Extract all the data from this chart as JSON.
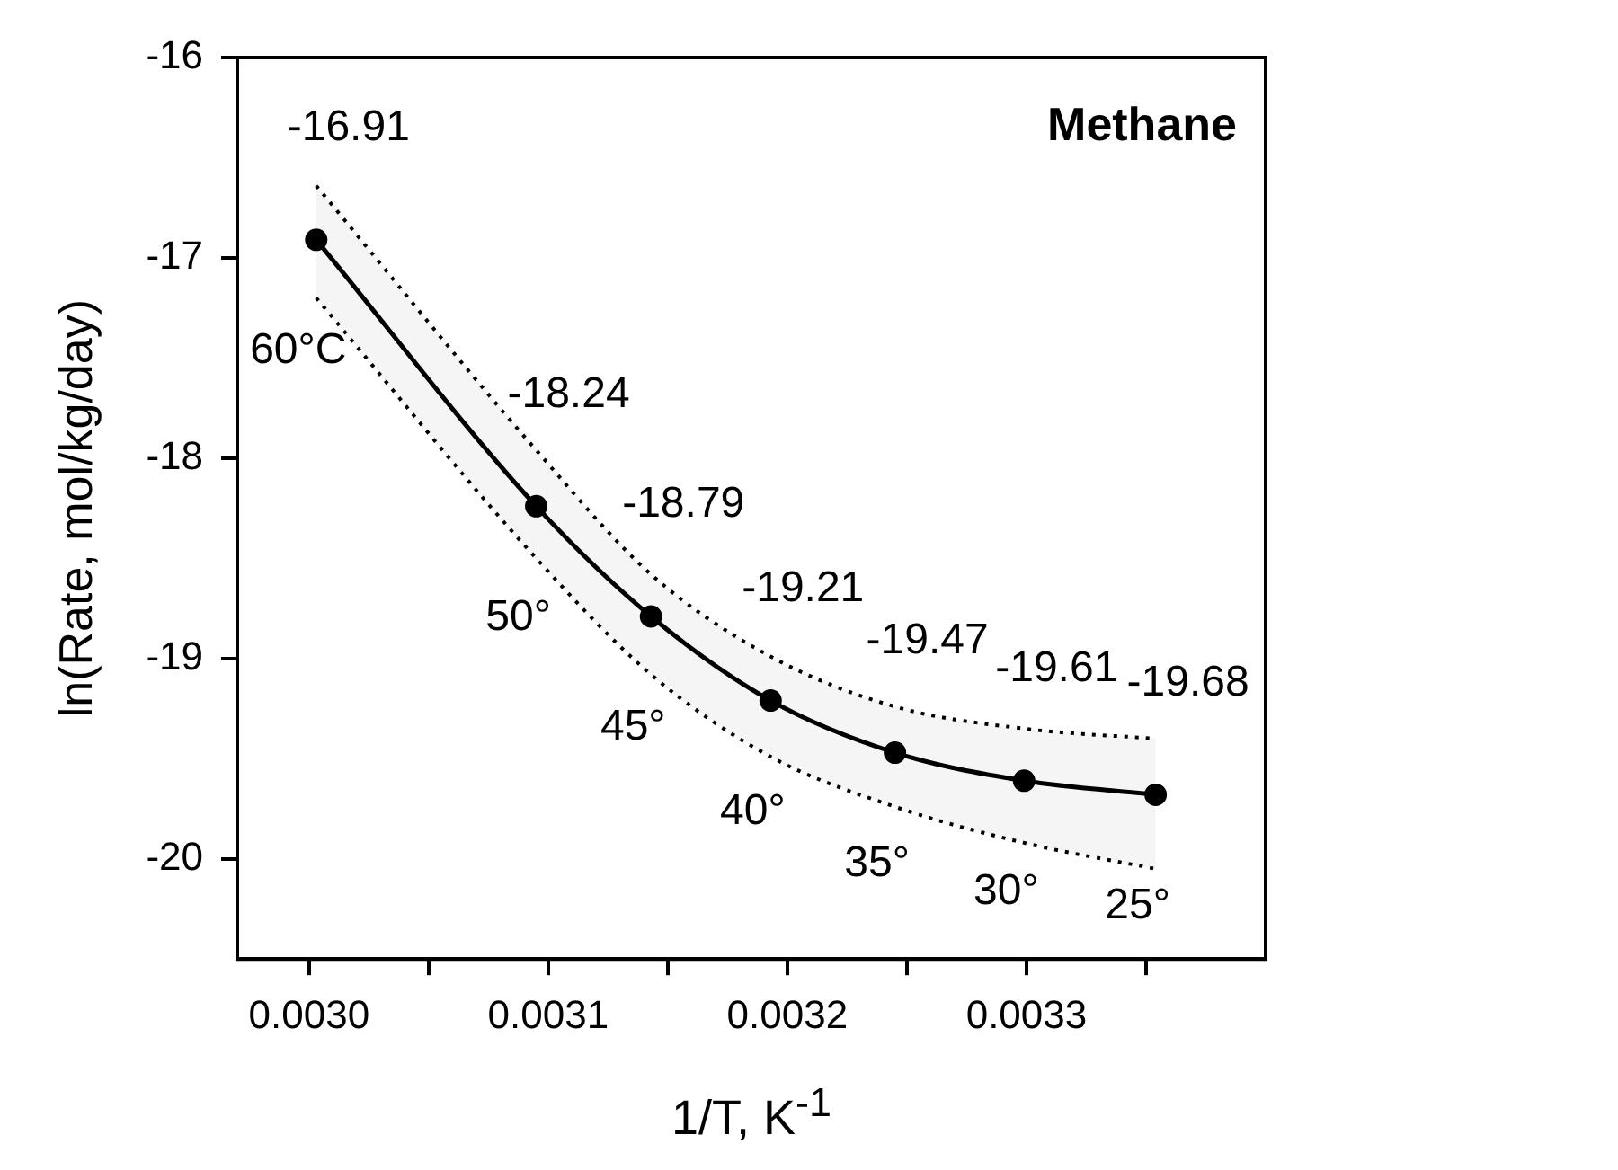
{
  "chart_data": {
    "type": "line",
    "xlabel": "1/T, K$^{-1}$",
    "ylabel": "ln(Rate, mol/kg/day)",
    "x": [
      0.003003,
      0.003095,
      0.003143,
      0.003193,
      0.003245,
      0.003299,
      0.003354
    ],
    "series": [
      {
        "color": "#000000",
        "values": [
          -16.91,
          -18.24,
          -18.79,
          -19.21,
          -19.47,
          -19.61,
          -19.68
        ],
        "lower": [
          -17.2,
          -18.5,
          -19.08,
          -19.49,
          -19.74,
          -19.92,
          -20.05
        ],
        "upper": [
          -16.64,
          -17.96,
          -18.58,
          -18.99,
          -19.24,
          -19.35,
          -19.4
        ]
      }
    ],
    "data_labels": true,
    "marker": "circle",
    "line_style": "solid",
    "grid": false,
    "legend": false,
    "xlim": [
      0.00297,
      0.0034
    ],
    "ylim": [
      -20.5,
      -16
    ],
    "xticks": [
      {
        "value": 0.003,
        "label": "0.0030"
      },
      {
        "value": 0.00305,
        "label": null
      },
      {
        "value": 0.0031,
        "label": "0.0031"
      },
      {
        "value": 0.00315,
        "label": null
      },
      {
        "value": 0.0032,
        "label": "0.0032"
      },
      {
        "value": 0.00325,
        "label": null
      },
      {
        "value": 0.0033,
        "label": "0.0033"
      },
      {
        "value": 0.00335,
        "label": null
      }
    ],
    "yticks": [
      -16,
      -17,
      -18,
      -19,
      -20
    ],
    "annotations": [
      "Methane",
      {
        "text": "60°C",
        "x": 0.003003,
        "y": -16.91
      },
      {
        "text": "50°",
        "x": 0.003095,
        "y": -18.24
      },
      {
        "text": "45°",
        "x": 0.003143,
        "y": -18.79
      },
      {
        "text": "40°",
        "x": 0.003193,
        "y": -19.21
      },
      {
        "text": "35°",
        "x": 0.003245,
        "y": -19.47
      },
      {
        "text": "30°",
        "x": 0.003299,
        "y": -19.61
      },
      {
        "text": "25°",
        "x": 0.003354,
        "y": -19.68
      }
    ]
  }
}
